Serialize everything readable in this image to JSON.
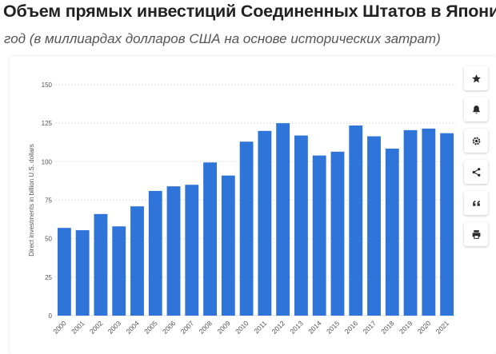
{
  "header": {
    "title": "Объем прямых инвестиций Соединенных Штатов в Японию",
    "subtitle": "год (в миллиардах долларов США на основе исторических затрат)"
  },
  "toolbar": {
    "icons": [
      "star-icon",
      "bell-icon",
      "gear-icon",
      "share-icon",
      "quote-icon",
      "print-icon"
    ]
  },
  "colors": {
    "bar": "#2f75d9",
    "grid": "#e3e3e3",
    "text": "#555555"
  },
  "chart_data": {
    "type": "bar",
    "title": "",
    "xlabel": "",
    "ylabel": "Direct investments in billion U.S. dollars",
    "categories": [
      "2000",
      "2001",
      "2002",
      "2003",
      "2004",
      "2005",
      "2006",
      "2007",
      "2008",
      "2009",
      "2010",
      "2011",
      "2012",
      "2013",
      "2014",
      "2015",
      "2016",
      "2017",
      "2018",
      "2019",
      "2020",
      "2021"
    ],
    "values": [
      57,
      55.5,
      66,
      58,
      71,
      81,
      84,
      85,
      99.5,
      91,
      113,
      120,
      125,
      117,
      104,
      106.5,
      123.5,
      116.5,
      108.5,
      120.5,
      121.5,
      118.5
    ],
    "yticks": [
      0,
      25,
      50,
      75,
      100,
      125,
      150
    ],
    "ylim": [
      0,
      150
    ],
    "grid": true
  }
}
